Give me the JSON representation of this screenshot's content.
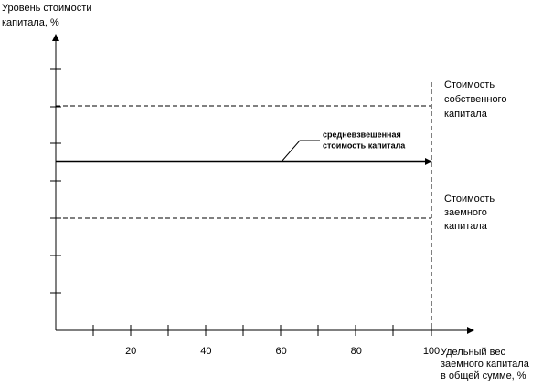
{
  "y_axis": {
    "label": [
      "Уровень стоимости",
      "капитала, %"
    ]
  },
  "x_axis": {
    "label": [
      "Удельный вес",
      "заемного капитала",
      "в общей сумме, %"
    ],
    "ticks": [
      20,
      40,
      60,
      80,
      100
    ]
  },
  "lines": [
    {
      "label": [
        "Стоимость",
        "собственного",
        "капитала"
      ]
    },
    {
      "label": [
        "средневзвешенная",
        "стоимость капитала"
      ]
    },
    {
      "label": [
        "Стоимость",
        "заемного",
        "капитала"
      ]
    }
  ]
}
